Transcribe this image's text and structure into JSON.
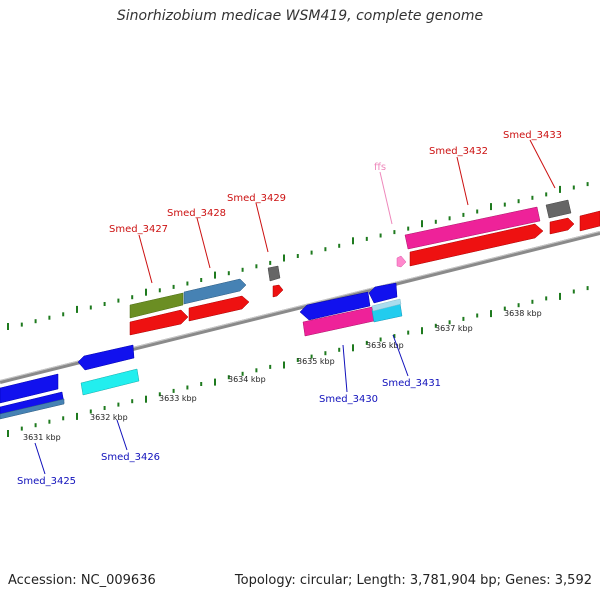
{
  "title": "Sinorhizobium medicae WSM419, complete genome",
  "footer": {
    "accession": "Accession: NC_009636",
    "summary": "Topology: circular; Length: 3,781,904 bp; Genes: 3,592"
  },
  "colors": {
    "backbone": "#8a8a8a",
    "tick": "#1e7a1e",
    "label_forward": "#cc1111",
    "label_reverse": "#1111bb",
    "label_rna": "#ee88bb",
    "leader_forward": "#cc1111",
    "leader_reverse": "#1111bb",
    "leader_rna": "#ee88bb"
  },
  "scale_labels": [
    "3631 kbp",
    "3632 kbp",
    "3633 kbp",
    "3634 kbp",
    "3635 kbp",
    "3636 kbp",
    "3637 kbp",
    "3638 kbp"
  ],
  "gene_labels": [
    {
      "name": "Smed_3425",
      "strand": "reverse"
    },
    {
      "name": "Smed_3426",
      "strand": "reverse"
    },
    {
      "name": "Smed_3427",
      "strand": "forward"
    },
    {
      "name": "Smed_3428",
      "strand": "forward"
    },
    {
      "name": "Smed_3429",
      "strand": "forward"
    },
    {
      "name": "ffs",
      "strand": "rna"
    },
    {
      "name": "Smed_3430",
      "strand": "reverse"
    },
    {
      "name": "Smed_3431",
      "strand": "reverse"
    },
    {
      "name": "Smed_3432",
      "strand": "forward"
    },
    {
      "name": "Smed_3433",
      "strand": "forward"
    }
  ]
}
